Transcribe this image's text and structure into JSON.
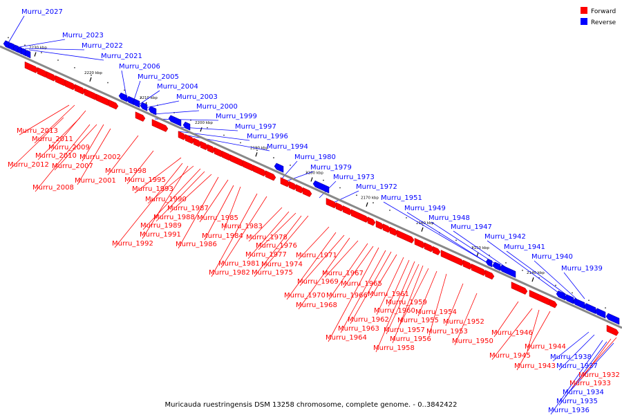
{
  "caption": "Muricauda ruestringensis DSM 13258 chromosome, complete genome. - 0..3842422",
  "colors": {
    "forward": "#ff0000",
    "reverse": "#0000ff",
    "backbone": "#888888"
  },
  "legend": [
    {
      "label": "Forward",
      "strand": "forward"
    },
    {
      "label": "Reverse",
      "strand": "reverse"
    }
  ],
  "ticks": [
    "2230 kbp",
    "2220 kbp",
    "2210 kbp",
    "2200 kbp",
    "2190 kbp",
    "2180 kbp",
    "2170 kbp",
    "2160 kbp",
    "2150 kbp",
    "2140 kbp"
  ],
  "genes": [
    {
      "label": "Murru_2027",
      "strand": "reverse"
    },
    {
      "label": "Murru_2023",
      "strand": "reverse"
    },
    {
      "label": "Murru_2022",
      "strand": "reverse"
    },
    {
      "label": "Murru_2021",
      "strand": "reverse"
    },
    {
      "label": "Murru_2013",
      "strand": "forward"
    },
    {
      "label": "Murru_2012",
      "strand": "forward"
    },
    {
      "label": "Murru_2011",
      "strand": "forward"
    },
    {
      "label": "Murru_2010",
      "strand": "forward"
    },
    {
      "label": "Murru_2009",
      "strand": "forward"
    },
    {
      "label": "Murru_2008",
      "strand": "forward"
    },
    {
      "label": "Murru_2007",
      "strand": "forward"
    },
    {
      "label": "Murru_2006",
      "strand": "reverse"
    },
    {
      "label": "Murru_2005",
      "strand": "reverse"
    },
    {
      "label": "Murru_2004",
      "strand": "reverse"
    },
    {
      "label": "Murru_2003",
      "strand": "reverse"
    },
    {
      "label": "Murru_2002",
      "strand": "forward"
    },
    {
      "label": "Murru_2001",
      "strand": "forward"
    },
    {
      "label": "Murru_2000",
      "strand": "reverse"
    },
    {
      "label": "Murru_1999",
      "strand": "reverse"
    },
    {
      "label": "Murru_1998",
      "strand": "forward"
    },
    {
      "label": "Murru_1997",
      "strand": "reverse"
    },
    {
      "label": "Murru_1996",
      "strand": "reverse"
    },
    {
      "label": "Murru_1995",
      "strand": "forward"
    },
    {
      "label": "Murru_1994",
      "strand": "reverse"
    },
    {
      "label": "Murru_1993",
      "strand": "forward"
    },
    {
      "label": "Murru_1992",
      "strand": "forward"
    },
    {
      "label": "Murru_1991",
      "strand": "forward"
    },
    {
      "label": "Murru_1990",
      "strand": "forward"
    },
    {
      "label": "Murru_1989",
      "strand": "forward"
    },
    {
      "label": "Murru_1988",
      "strand": "forward"
    },
    {
      "label": "Murru_1987",
      "strand": "forward"
    },
    {
      "label": "Murru_1986",
      "strand": "forward"
    },
    {
      "label": "Murru_1985",
      "strand": "forward"
    },
    {
      "label": "Murru_1984",
      "strand": "forward"
    },
    {
      "label": "Murru_1983",
      "strand": "forward"
    },
    {
      "label": "Murru_1982",
      "strand": "forward"
    },
    {
      "label": "Murru_1981",
      "strand": "forward"
    },
    {
      "label": "Murru_1980",
      "strand": "reverse"
    },
    {
      "label": "Murru_1979",
      "strand": "reverse"
    },
    {
      "label": "Murru_1978",
      "strand": "forward"
    },
    {
      "label": "Murru_1977",
      "strand": "forward"
    },
    {
      "label": "Murru_1976",
      "strand": "forward"
    },
    {
      "label": "Murru_1975",
      "strand": "forward"
    },
    {
      "label": "Murru_1974",
      "strand": "forward"
    },
    {
      "label": "Murru_1973",
      "strand": "reverse"
    },
    {
      "label": "Murru_1972",
      "strand": "reverse"
    },
    {
      "label": "Murru_1971",
      "strand": "forward"
    },
    {
      "label": "Murru_1970",
      "strand": "forward"
    },
    {
      "label": "Murru_1969",
      "strand": "forward"
    },
    {
      "label": "Murru_1968",
      "strand": "forward"
    },
    {
      "label": "Murru_1967",
      "strand": "forward"
    },
    {
      "label": "Murru_1966",
      "strand": "forward"
    },
    {
      "label": "Murru_1965",
      "strand": "forward"
    },
    {
      "label": "Murru_1964",
      "strand": "forward"
    },
    {
      "label": "Murru_1963",
      "strand": "forward"
    },
    {
      "label": "Murru_1962",
      "strand": "forward"
    },
    {
      "label": "Murru_1961",
      "strand": "forward"
    },
    {
      "label": "Murru_1960",
      "strand": "forward"
    },
    {
      "label": "Murru_1959",
      "strand": "forward"
    },
    {
      "label": "Murru_1958",
      "strand": "forward"
    },
    {
      "label": "Murru_1957",
      "strand": "forward"
    },
    {
      "label": "Murru_1956",
      "strand": "forward"
    },
    {
      "label": "Murru_1955",
      "strand": "forward"
    },
    {
      "label": "Murru_1954",
      "strand": "forward"
    },
    {
      "label": "Murru_1953",
      "strand": "forward"
    },
    {
      "label": "Murru_1952",
      "strand": "forward"
    },
    {
      "label": "Murru_1951",
      "strand": "reverse"
    },
    {
      "label": "Murru_1950",
      "strand": "forward"
    },
    {
      "label": "Murru_1949",
      "strand": "reverse"
    },
    {
      "label": "Murru_1948",
      "strand": "reverse"
    },
    {
      "label": "Murru_1947",
      "strand": "reverse"
    },
    {
      "label": "Murru_1946",
      "strand": "forward"
    },
    {
      "label": "Murru_1945",
      "strand": "forward"
    },
    {
      "label": "Murru_1944",
      "strand": "forward"
    },
    {
      "label": "Murru_1943",
      "strand": "forward"
    },
    {
      "label": "Murru_1942",
      "strand": "reverse"
    },
    {
      "label": "Murru_1941",
      "strand": "reverse"
    },
    {
      "label": "Murru_1940",
      "strand": "reverse"
    },
    {
      "label": "Murru_1939",
      "strand": "reverse"
    },
    {
      "label": "Murru_1938",
      "strand": "reverse"
    },
    {
      "label": "Murru_1937",
      "strand": "reverse"
    },
    {
      "label": "Murru_1936",
      "strand": "reverse"
    },
    {
      "label": "Murru_1935",
      "strand": "reverse"
    },
    {
      "label": "Murru_1934",
      "strand": "reverse"
    },
    {
      "label": "Murru_1933",
      "strand": "forward"
    },
    {
      "label": "Murru_1932",
      "strand": "forward"
    }
  ]
}
